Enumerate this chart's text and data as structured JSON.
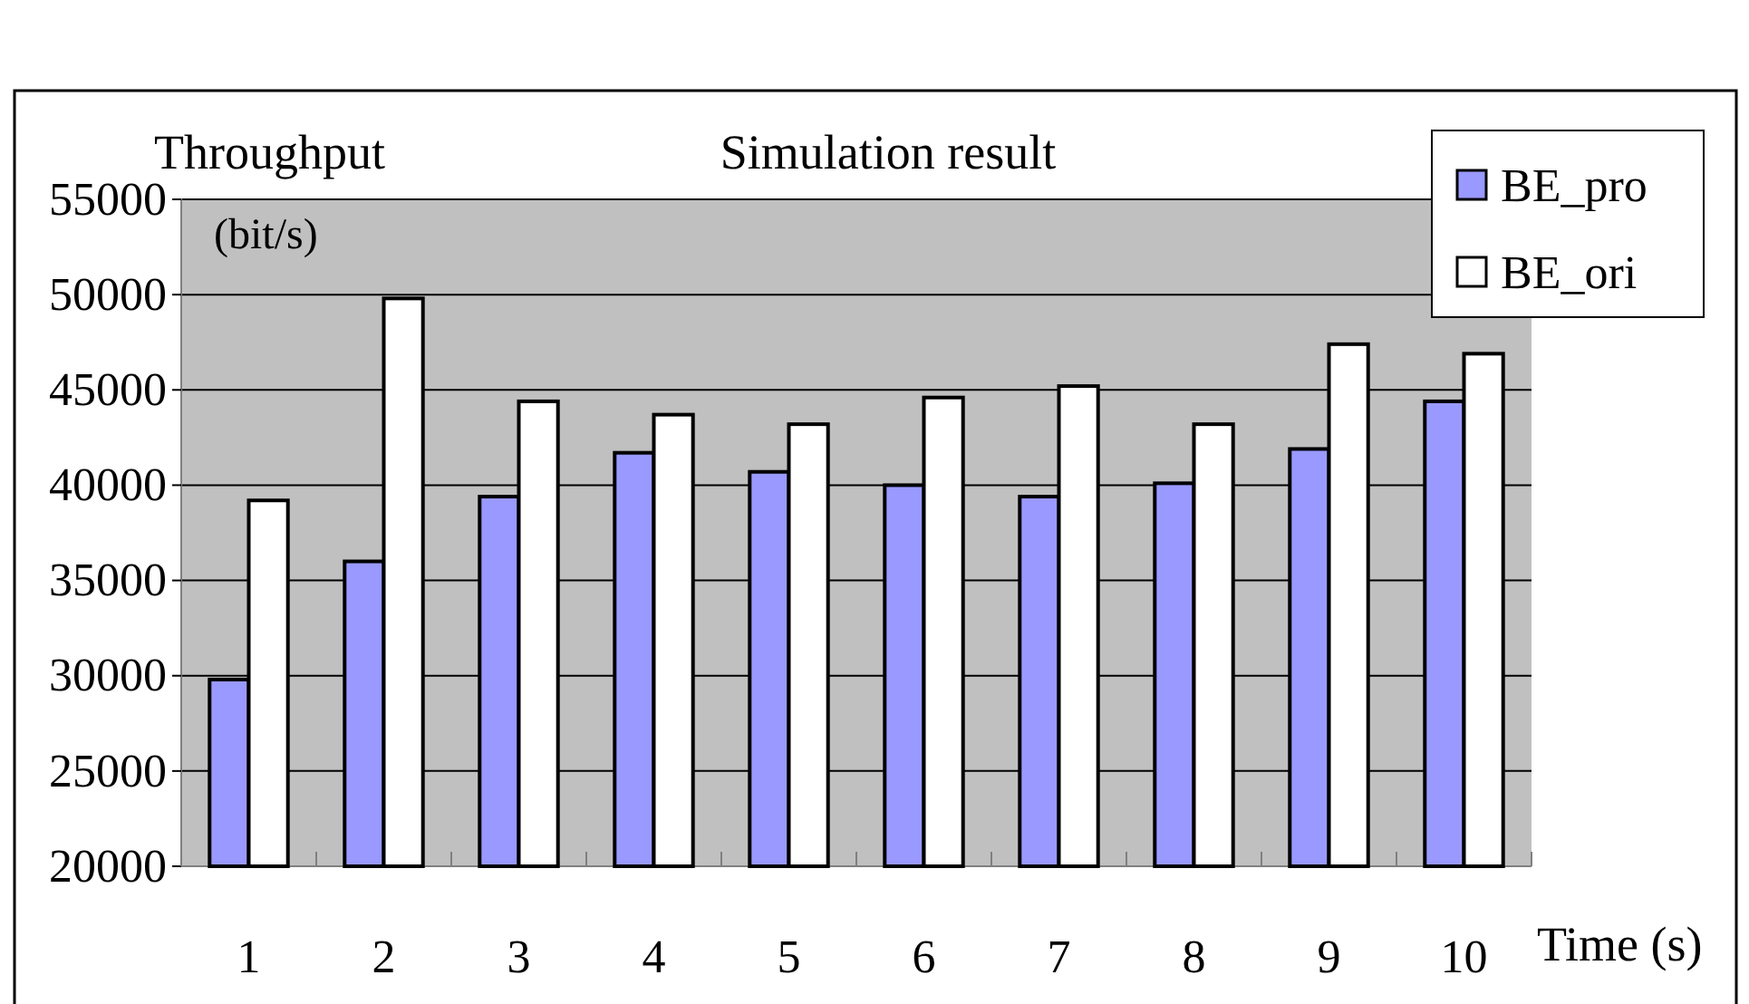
{
  "chart_data": {
    "type": "bar",
    "title": "Simulation result",
    "ylabel": "Throughput (bit/s)",
    "xlabel": "Time (s)",
    "categories": [
      "1",
      "2",
      "3",
      "4",
      "5",
      "6",
      "7",
      "8",
      "9",
      "10"
    ],
    "series": [
      {
        "name": "BE_pro",
        "color": "#9999ff",
        "values": [
          29800,
          36000,
          39400,
          41700,
          40700,
          40000,
          39400,
          40100,
          41900,
          44400
        ]
      },
      {
        "name": "BE_ori",
        "color": "#ffffff",
        "values": [
          39200,
          49800,
          44400,
          43700,
          43200,
          44600,
          45200,
          43200,
          47400,
          46900
        ]
      }
    ],
    "ylim": [
      20000,
      55000
    ],
    "yticks": [
      20000,
      25000,
      30000,
      35000,
      40000,
      45000,
      50000,
      55000
    ],
    "grid": "y",
    "legend": "top right"
  }
}
